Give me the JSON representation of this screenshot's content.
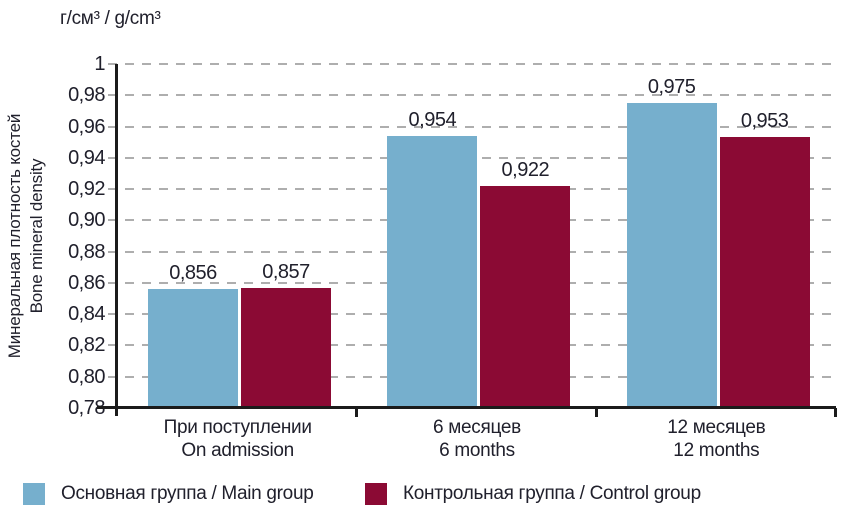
{
  "chart_data": {
    "type": "bar",
    "unit_label": "г/см³ /  g/cm³",
    "ylabel_ru": "Минеральная плотность костей",
    "ylabel_en": "Bone mineral density",
    "categories": [
      {
        "ru": "При поступлении",
        "en": "On admission"
      },
      {
        "ru": "6 месяцев",
        "en": "6 months"
      },
      {
        "ru": "12 месяцев",
        "en": "12 months"
      }
    ],
    "series": [
      {
        "name": "Основная группа / Main group",
        "color": "#76AFCD",
        "values": [
          0.856,
          0.954,
          0.975
        ],
        "value_labels": [
          "0,856",
          "0,954",
          "0,975"
        ]
      },
      {
        "name": "Контрольная группа / Control group",
        "color": "#8B0A34",
        "values": [
          0.857,
          0.922,
          0.953
        ],
        "value_labels": [
          "0,857",
          "0,922",
          "0,953"
        ]
      }
    ],
    "ylim": [
      0.78,
      1.0
    ],
    "yticks": [
      {
        "v": 0.78,
        "label": "0,78"
      },
      {
        "v": 0.8,
        "label": "0,80"
      },
      {
        "v": 0.82,
        "label": "0,82"
      },
      {
        "v": 0.84,
        "label": "0,84"
      },
      {
        "v": 0.86,
        "label": "0,86"
      },
      {
        "v": 0.88,
        "label": "0,88"
      },
      {
        "v": 0.9,
        "label": "0,90"
      },
      {
        "v": 0.92,
        "label": "0,92"
      },
      {
        "v": 0.94,
        "label": "0,94"
      },
      {
        "v": 0.96,
        "label": "0,96"
      },
      {
        "v": 0.98,
        "label": "0,98"
      },
      {
        "v": 1.0,
        "label": "1"
      }
    ],
    "grid": "dashed-horizontal",
    "legend_position": "bottom",
    "colors": {
      "axis": "#1b1b1b",
      "gridline": "#aeaeae",
      "text": "#20202c",
      "background": "#ffffff"
    }
  }
}
